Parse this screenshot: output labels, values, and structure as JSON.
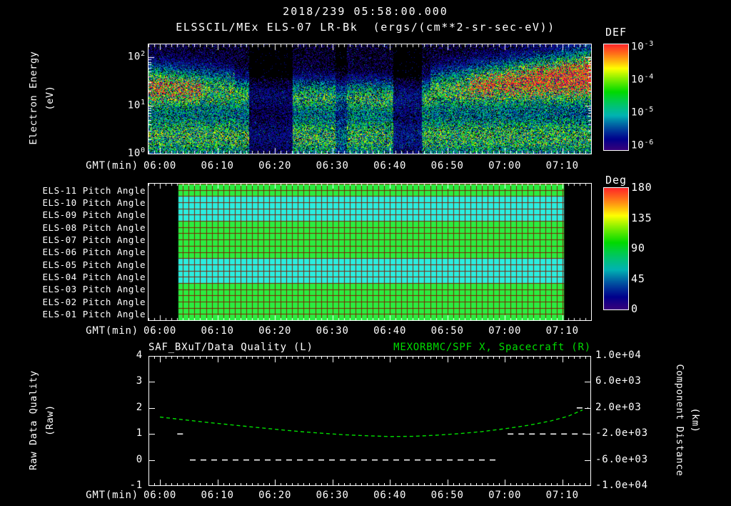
{
  "header": {
    "title": "2018/239 05:58:00.000"
  },
  "labels": {
    "gmt": "GMT(min)"
  },
  "time_axis": {
    "t_start_rel": -2,
    "t_end_rel": 75,
    "major_step": 10,
    "minor_step": 1,
    "ticks": [
      {
        "label": "06:00",
        "t": 0
      },
      {
        "label": "06:10",
        "t": 10
      },
      {
        "label": "06:20",
        "t": 20
      },
      {
        "label": "06:30",
        "t": 30
      },
      {
        "label": "06:40",
        "t": 40
      },
      {
        "label": "06:50",
        "t": 50
      },
      {
        "label": "07:00",
        "t": 60
      },
      {
        "label": "07:10",
        "t": 70
      }
    ]
  },
  "chart_data": [
    {
      "type": "heatmap",
      "name": "electron-energy-spectrogram",
      "title": "ELSSCIL/MEx ELS-07 LR-Bk  (ergs/(cm**2-sr-sec-eV))",
      "xlabel": "GMT(min)",
      "ylabel": "Electron Energy (eV)",
      "ylabel_line1": "Electron Energy",
      "ylabel_line2": "(eV)",
      "y_scale": "log",
      "y_range_ev": [
        1,
        186
      ],
      "y_ticks": [
        {
          "base": "10",
          "exp": "2",
          "log": 2
        },
        {
          "base": "10",
          "exp": "1",
          "log": 1
        },
        {
          "base": "10",
          "exp": "0",
          "log": 0
        }
      ],
      "time_start": "05:58",
      "time_end": "07:15",
      "colorbar": {
        "title": "DEF",
        "units": "ergs/(cm**2-sr-sec-eV)",
        "scale": "log",
        "ticks": [
          {
            "base": "10",
            "exp": "-3"
          },
          {
            "base": "10",
            "exp": "-4"
          },
          {
            "base": "10",
            "exp": "-5"
          },
          {
            "base": "10",
            "exp": "-6"
          }
        ]
      },
      "features": {
        "background_level": 0.05,
        "bands": [
          {
            "t0": -2,
            "t1": 13,
            "a0": 0.62,
            "a1": 0.5,
            "c0": 1.35,
            "c1": 1.28,
            "s0": 0.3,
            "s1": 0.26
          },
          {
            "t0": -2,
            "t1": 7,
            "a0": 0.35,
            "a1": 0.25,
            "c0": 1.38,
            "c1": 1.33,
            "s0": 0.16,
            "s1": 0.16
          },
          {
            "t0": 13,
            "t1": 47,
            "a0": 0.45,
            "a1": 0.45,
            "c0": 1.22,
            "c1": 1.15,
            "s0": 0.22,
            "s1": 0.22
          },
          {
            "t0": 47,
            "t1": 75,
            "a0": 0.5,
            "a1": 1.0,
            "c0": 1.28,
            "c1": 1.58,
            "s0": 0.26,
            "s1": 0.34
          },
          {
            "t0": 54,
            "t1": 75,
            "a0": 0.25,
            "a1": 0.6,
            "c0": 1.42,
            "c1": 1.62,
            "s0": 0.15,
            "s1": 0.17
          },
          {
            "t0": -2,
            "t1": 75,
            "a0": 0.5,
            "a1": 0.5,
            "c0": 0.35,
            "c1": 0.35,
            "s0": 0.32,
            "s1": 0.32
          }
        ],
        "gaps": [
          {
            "t0": 15.5,
            "t1": 23,
            "f": 0.22
          },
          {
            "t0": 30.5,
            "t1": 32.5,
            "f": 0.55
          },
          {
            "t0": 40.5,
            "t1": 45.5,
            "f": 0.28
          }
        ]
      }
    },
    {
      "type": "heatmap",
      "name": "pitch-angle-rows",
      "xlabel": "GMT(min)",
      "data_t0": 3.2,
      "data_t1": 70.3,
      "grid_color": "rgba(130,25,0,0.95)",
      "rows": [
        {
          "label": "ELS-11 Pitch Angle",
          "deg": 95
        },
        {
          "label": "ELS-10 Pitch Angle",
          "deg": 62
        },
        {
          "label": "ELS-09 Pitch Angle",
          "deg": 62
        },
        {
          "label": "ELS-08 Pitch Angle",
          "deg": 95
        },
        {
          "label": "ELS-07 Pitch Angle",
          "deg": 95
        },
        {
          "label": "ELS-06 Pitch Angle",
          "deg": 95
        },
        {
          "label": "ELS-05 Pitch Angle",
          "deg": 62
        },
        {
          "label": "ELS-04 Pitch Angle",
          "deg": 62
        },
        {
          "label": "ELS-03 Pitch Angle",
          "deg": 95
        },
        {
          "label": "ELS-02 Pitch Angle",
          "deg": 95
        },
        {
          "label": "ELS-01 Pitch Angle",
          "deg": 95
        }
      ],
      "colorbar": {
        "title": "Deg",
        "range": [
          0,
          180
        ],
        "ticks": [
          180,
          135,
          90,
          45,
          0
        ]
      }
    },
    {
      "type": "line",
      "name": "quality-and-distance",
      "left_title": "SAF_BXuT/Data Quality (L)",
      "right_title": "MEXORBMC/SPF X, Spacecraft (R)",
      "xlabel": "GMT(min)",
      "ylabel_left": "Raw Data Quality (Raw)",
      "ylabel_left_line1": "Raw Data Quality",
      "ylabel_left_line2": "(Raw)",
      "ylabel_right": "Component Distance (km)",
      "ylabel_right_line1": "Component Distance",
      "ylabel_right_line2": "(km)",
      "y_left_range": [
        -1,
        4
      ],
      "y_left_ticks": [
        4,
        3,
        2,
        1,
        0,
        -1
      ],
      "y_right_ticks": [
        "1.0e+04",
        "6.0e+03",
        "2.0e+03",
        "-2.0e+03",
        "-6.0e+03",
        "-1.0e+04"
      ],
      "series": [
        {
          "name": "MEXORBMC/SPF X, Spacecraft",
          "color": "#00dd00",
          "style": "dashed",
          "t": [
            0,
            4,
            8,
            12,
            16,
            20,
            24,
            28,
            32,
            36,
            40,
            44,
            48,
            52,
            56,
            60,
            64,
            68,
            71,
            73.5
          ],
          "v": [
            1.65,
            1.55,
            1.45,
            1.36,
            1.27,
            1.18,
            1.1,
            1.03,
            0.97,
            0.93,
            0.9,
            0.91,
            0.95,
            1.01,
            1.09,
            1.2,
            1.33,
            1.5,
            1.68,
            1.92
          ]
        },
        {
          "name": "SAF_BXuT/Data Quality",
          "color": "#ffffff",
          "style": "dashed",
          "segments": [
            {
              "t0": 3,
              "t1": 4.6,
              "v": 1
            },
            {
              "t0": 5.2,
              "t1": 58.5,
              "v": 0
            },
            {
              "t0": 60.5,
              "t1": 74,
              "v": 1
            },
            {
              "t0": 72.5,
              "t1": 74.5,
              "v": 2
            }
          ]
        }
      ]
    }
  ]
}
